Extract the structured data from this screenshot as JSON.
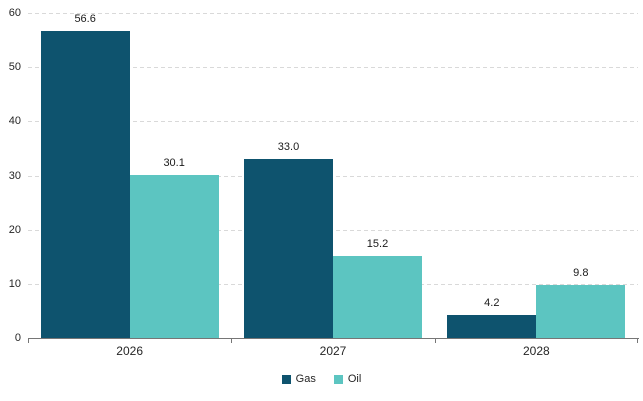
{
  "chart_data": {
    "type": "bar",
    "categories": [
      "2026",
      "2027",
      "2028"
    ],
    "series": [
      {
        "name": "Gas",
        "color": "#0E536E",
        "values": [
          56.6,
          33.0,
          4.2
        ],
        "labels": [
          "56.6",
          "33.0",
          "4.2"
        ]
      },
      {
        "name": "Oil",
        "color": "#5CC5C1",
        "values": [
          30.1,
          15.2,
          9.8
        ],
        "labels": [
          "30.1",
          "15.2",
          "9.8"
        ]
      }
    ],
    "title": "",
    "xlabel": "",
    "ylabel": "",
    "ylim": [
      0,
      60
    ],
    "y_ticks": [
      0,
      10,
      20,
      30,
      40,
      50,
      60
    ],
    "grid": "horizontal-dashed",
    "legend_position": "bottom-center",
    "style_colors": {
      "gridline": "#D9D9D9",
      "axis_line": "#767676",
      "label_text": "#262626"
    }
  }
}
